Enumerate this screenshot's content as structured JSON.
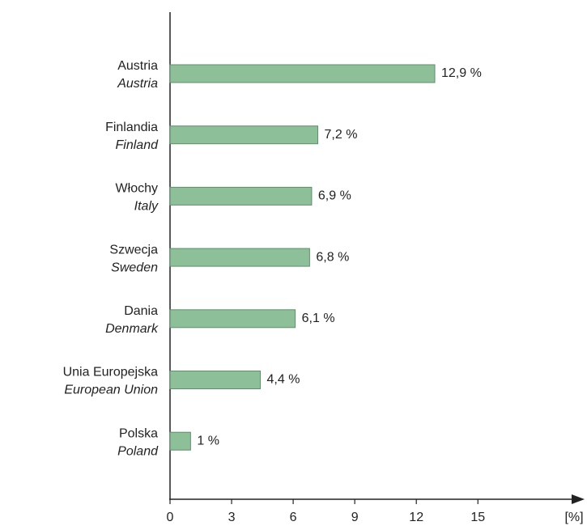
{
  "chart_data": {
    "type": "bar",
    "orientation": "horizontal",
    "categories": [
      "Austria",
      "Finlandia",
      "Włochy",
      "Szwecja",
      "Dania",
      "Unia Europejska",
      "Polska"
    ],
    "categories_en": [
      "Austria",
      "Finland",
      "Italy",
      "Sweden",
      "Denmark",
      "European Union",
      "Poland"
    ],
    "values": [
      12.9,
      7.2,
      6.9,
      6.8,
      6.1,
      4.4,
      1
    ],
    "value_labels": [
      "12,9 %",
      "7,2 %",
      "6,9 %",
      "6,8 %",
      "6,1 %",
      "4,4 %",
      "1 %"
    ],
    "color": "#8dbf98",
    "xlim": [
      0,
      20
    ],
    "xticks": [
      0,
      3,
      6,
      9,
      12,
      15
    ],
    "xlabel": "[%]"
  }
}
